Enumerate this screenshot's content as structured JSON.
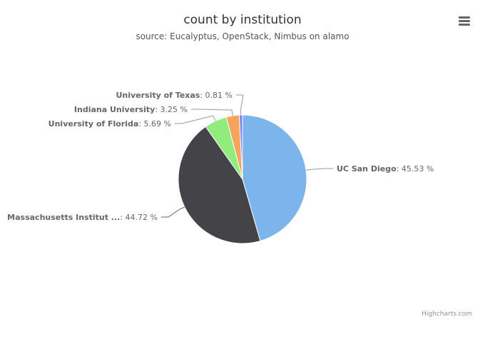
{
  "chart_data": {
    "type": "pie",
    "title": "count by institution",
    "subtitle": "source: Eucalyptus, OpenStack, Nimbus on alamo",
    "slices": [
      {
        "label": "UC San Diego",
        "value": 45.53,
        "value_text": ": 45.53 %",
        "color": "#7cb5ec"
      },
      {
        "label": "Massachusetts Institut ...",
        "value": 44.72,
        "value_text": ": 44.72 %",
        "color": "#434348"
      },
      {
        "label": "University of Florida",
        "value": 5.69,
        "value_text": ": 5.69 %",
        "color": "#90ed7d"
      },
      {
        "label": "Indiana University",
        "value": 3.25,
        "value_text": ": 3.25 %",
        "color": "#f7a35c"
      },
      {
        "label": "University of Texas",
        "value": 0.81,
        "value_text": ": 0.81 %",
        "color": "#8085e9"
      }
    ]
  },
  "toolbar": {
    "menu_icon": "hamburger-menu-icon"
  },
  "credits": "Highcharts.com"
}
